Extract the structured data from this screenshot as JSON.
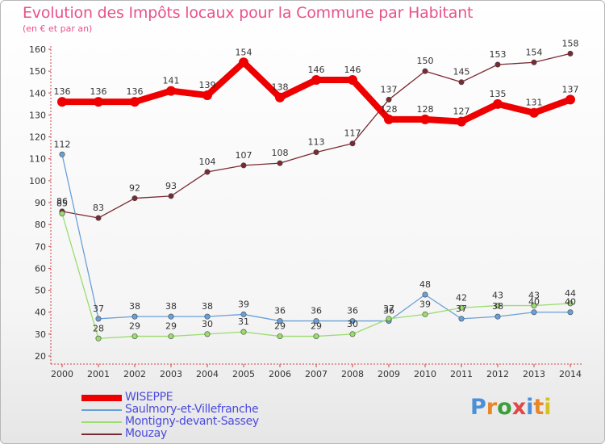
{
  "header": {
    "title": "Evolution des Impôts locaux pour la Commune par Habitant",
    "subtitle": "(en € et par an)"
  },
  "logo": {
    "text": "Proxiti"
  },
  "chart_data": {
    "type": "line",
    "x": [
      "2000",
      "2001",
      "2002",
      "2003",
      "2004",
      "2005",
      "2006",
      "2007",
      "2008",
      "2009",
      "2010",
      "2011",
      "2012",
      "2013",
      "2014"
    ],
    "ylim": [
      20,
      160
    ],
    "yticks": [
      20,
      30,
      40,
      50,
      60,
      70,
      80,
      90,
      100,
      110,
      120,
      130,
      140,
      150,
      160
    ],
    "grid": false,
    "legend_position": "bottom-left",
    "series": [
      {
        "name": "WISEPPE",
        "color": "#ee0000",
        "values": [
          136,
          136,
          136,
          141,
          139,
          154,
          138,
          146,
          146,
          128,
          128,
          127,
          135,
          131,
          137
        ]
      },
      {
        "name": "Saulmory-et-Villefranche",
        "color": "#6aa0d8",
        "values": [
          112,
          37,
          38,
          38,
          38,
          39,
          36,
          36,
          36,
          36,
          48,
          37,
          38,
          40,
          40
        ]
      },
      {
        "name": "Montigny-devant-Sassey",
        "color": "#9bdc6e",
        "values": [
          85,
          28,
          29,
          29,
          30,
          31,
          29,
          29,
          30,
          37,
          39,
          42,
          43,
          43,
          44
        ]
      },
      {
        "name": "Mouzay",
        "color": "#7a2a32",
        "values": [
          86,
          83,
          92,
          93,
          104,
          107,
          108,
          113,
          117,
          137,
          150,
          145,
          153,
          154,
          158
        ]
      }
    ]
  }
}
